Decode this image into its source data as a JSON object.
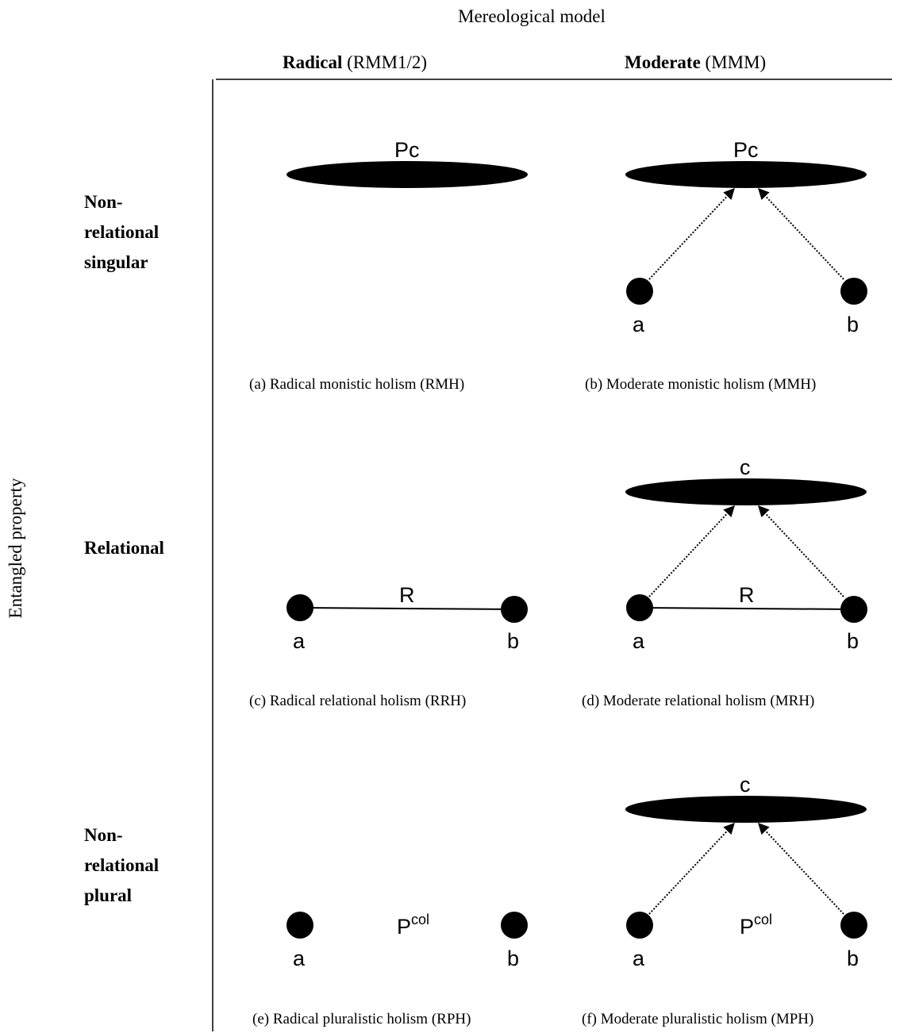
{
  "header": {
    "title": "Mereological model",
    "radical_bold": "Radical",
    "radical_rest": " (RMM1/2)",
    "moderate_bold": "Moderate",
    "moderate_rest": " (MMM)"
  },
  "y_axis_label": "Entangled property",
  "rows": [
    {
      "line1": "Non-",
      "line2": "relational",
      "line3": "singular"
    },
    {
      "line1": "Relational"
    },
    {
      "line1": "Non-",
      "line2": "relational",
      "line3": "plural"
    }
  ],
  "captions": {
    "a": "(a) Radical monistic holism (RMH)",
    "b": "(b) Moderate monistic holism (MMH)",
    "c": "(c) Radical relational holism (RRH)",
    "d": "(d) Moderate relational holism (MRH)",
    "e": "(e) Radical pluralistic holism (RPH)",
    "f": "(f) Moderate pluralistic holism (MPH)"
  },
  "node_labels": {
    "pc": "Pc",
    "c": "c",
    "a": "a",
    "b": "b",
    "r": "R",
    "p": "P",
    "col": "col"
  },
  "colors": {
    "ink": "#000000",
    "background": "#ffffff"
  }
}
